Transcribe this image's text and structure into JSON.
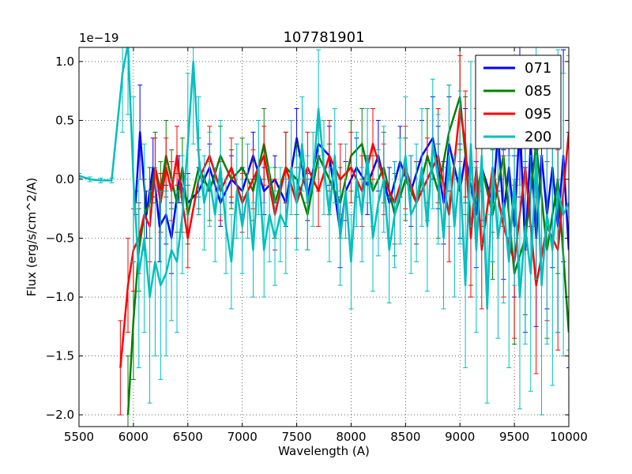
{
  "chart_data": {
    "type": "line",
    "title": "107781901",
    "xlabel": "Wavelength (A)",
    "ylabel": "Flux (erg/s/cm^2/A)",
    "offset_text": "1e−19",
    "xlim": [
      5500,
      10000
    ],
    "ylim": [
      -2.1,
      1.12
    ],
    "xticks": [
      5500,
      6000,
      6500,
      7000,
      7500,
      8000,
      8500,
      9000,
      9500,
      10000
    ],
    "yticks": [
      1.0,
      0.5,
      0.0,
      -0.5,
      -1.0,
      -1.5,
      -2.0
    ],
    "ytick_labels": [
      "1.0",
      "0.5",
      "0.0",
      "−0.5",
      "−1.0",
      "−1.5",
      "−2.0"
    ],
    "grid": true,
    "legend_position": "top-right",
    "series": [
      {
        "name": "071",
        "color": "#0000ff",
        "x": [
          6020,
          6060,
          6120,
          6180,
          6240,
          6300,
          6350,
          6420,
          6500,
          6600,
          6700,
          6800,
          6900,
          7000,
          7100,
          7200,
          7300,
          7400,
          7500,
          7600,
          7700,
          7800,
          7900,
          7950,
          8050,
          8150,
          8250,
          8350,
          8450,
          8550,
          8650,
          8750,
          8800,
          8850,
          8900,
          9000,
          9050,
          9150,
          9200,
          9300,
          9350,
          9400,
          9450,
          9500,
          9550,
          9600,
          9650,
          9700,
          9750,
          9800,
          9850,
          9900,
          9950,
          10000
        ],
        "y": [
          -0.2,
          0.4,
          -0.3,
          0.1,
          -0.4,
          -0.3,
          -0.5,
          0.0,
          -0.2,
          -0.1,
          0.1,
          -0.2,
          0.0,
          -0.1,
          0.2,
          -0.1,
          0.0,
          -0.2,
          0.35,
          -0.15,
          0.3,
          0.2,
          -0.45,
          -0.1,
          0.1,
          -0.05,
          0.2,
          -0.2,
          0.15,
          -0.1,
          0.2,
          0.35,
          0.1,
          -0.2,
          0.3,
          -0.1,
          0.2,
          -0.3,
          0.1,
          -0.2,
          0.4,
          -0.3,
          0.1,
          -0.4,
          0.5,
          -0.6,
          0.3,
          -0.5,
          0.2,
          -0.3,
          0.1,
          -0.4,
          0.2,
          -0.6
        ],
        "err": [
          0.1,
          0.4,
          0.2,
          0.25,
          0.3,
          0.25,
          0.3,
          0.2,
          0.25,
          0.2,
          0.2,
          0.2,
          0.2,
          0.2,
          0.2,
          0.2,
          0.2,
          0.2,
          0.25,
          0.2,
          0.2,
          0.25,
          0.3,
          0.25,
          0.25,
          0.25,
          0.3,
          0.3,
          0.3,
          0.3,
          0.3,
          0.35,
          0.35,
          0.35,
          0.4,
          0.4,
          0.4,
          0.45,
          0.45,
          0.5,
          0.5,
          0.55,
          0.6,
          0.6,
          0.65,
          0.7,
          0.7,
          0.75,
          0.8,
          0.8,
          0.85,
          0.9,
          0.9,
          1.0
        ]
      },
      {
        "name": "085",
        "color": "#008000",
        "x": [
          5950,
          6000,
          6050,
          6100,
          6150,
          6200,
          6250,
          6300,
          6350,
          6400,
          6450,
          6500,
          6600,
          6700,
          6800,
          6900,
          7000,
          7100,
          7200,
          7300,
          7400,
          7500,
          7600,
          7700,
          7800,
          7900,
          8000,
          8100,
          8200,
          8300,
          8400,
          8500,
          8600,
          8700,
          8800,
          8900,
          9000,
          9050,
          9100,
          9200,
          9300,
          9400,
          9500,
          9600,
          9700,
          9800,
          9900,
          10000
        ],
        "y": [
          -2.0,
          -1.2,
          -0.6,
          -0.3,
          -0.2,
          0.1,
          -0.1,
          0.2,
          0.0,
          -0.2,
          0.1,
          -0.3,
          0.1,
          -0.1,
          0.2,
          0.0,
          0.1,
          -0.1,
          0.3,
          -0.2,
          0.1,
          0.0,
          -0.3,
          0.2,
          0.0,
          -0.2,
          0.2,
          0.3,
          -0.1,
          0.1,
          -0.3,
          0.0,
          -0.2,
          0.2,
          -0.1,
          0.4,
          0.7,
          0.2,
          -0.4,
          0.1,
          -0.3,
          0.2,
          -0.8,
          -0.5,
          0.3,
          -0.6,
          0.0,
          -1.3
        ],
        "err": [
          0.5,
          0.5,
          0.35,
          0.3,
          0.3,
          0.3,
          0.25,
          0.3,
          0.25,
          0.25,
          0.25,
          0.25,
          0.25,
          0.25,
          0.25,
          0.25,
          0.25,
          0.25,
          0.3,
          0.3,
          0.3,
          0.3,
          0.3,
          0.3,
          0.3,
          0.3,
          0.3,
          0.3,
          0.3,
          0.3,
          0.35,
          0.35,
          0.35,
          0.4,
          0.4,
          0.4,
          0.45,
          0.5,
          0.5,
          0.5,
          0.55,
          0.6,
          0.6,
          0.65,
          0.7,
          0.75,
          0.8,
          0.85
        ]
      },
      {
        "name": "095",
        "color": "#ff0000",
        "x": [
          5880,
          5950,
          6000,
          6050,
          6100,
          6150,
          6200,
          6250,
          6300,
          6350,
          6400,
          6450,
          6500,
          6600,
          6700,
          6800,
          6900,
          7000,
          7100,
          7200,
          7300,
          7400,
          7500,
          7600,
          7700,
          7800,
          7900,
          8000,
          8100,
          8200,
          8300,
          8400,
          8500,
          8600,
          8700,
          8800,
          8900,
          9000,
          9050,
          9100,
          9150,
          9200,
          9300,
          9400,
          9500,
          9600,
          9700,
          9800,
          9900,
          10000
        ],
        "y": [
          -1.6,
          -0.9,
          -0.6,
          -0.5,
          -0.3,
          -0.4,
          0.1,
          -0.2,
          0.1,
          -0.1,
          0.2,
          -0.2,
          -0.5,
          0.0,
          0.2,
          -0.1,
          0.1,
          -0.2,
          0.0,
          0.2,
          -0.3,
          0.1,
          -0.2,
          0.1,
          -0.1,
          0.2,
          0.0,
          0.1,
          -0.1,
          0.3,
          0.0,
          -0.2,
          0.1,
          -0.2,
          0.0,
          0.2,
          -0.3,
          0.6,
          0.3,
          -0.5,
          0.1,
          -0.6,
          0.1,
          -0.4,
          -0.7,
          0.1,
          -0.9,
          -0.4,
          -0.6,
          0.4
        ],
        "err": [
          0.4,
          0.4,
          0.35,
          0.3,
          0.3,
          0.3,
          0.25,
          0.25,
          0.25,
          0.25,
          0.25,
          0.25,
          0.25,
          0.25,
          0.25,
          0.25,
          0.25,
          0.25,
          0.25,
          0.25,
          0.3,
          0.3,
          0.3,
          0.3,
          0.3,
          0.3,
          0.3,
          0.3,
          0.3,
          0.3,
          0.3,
          0.35,
          0.35,
          0.35,
          0.35,
          0.4,
          0.4,
          0.45,
          0.45,
          0.5,
          0.5,
          0.5,
          0.55,
          0.6,
          0.65,
          0.7,
          0.75,
          0.8,
          0.85,
          0.9
        ]
      },
      {
        "name": "200",
        "color": "#00bfbf",
        "x": [
          5500,
          5600,
          5700,
          5800,
          5900,
          5950,
          6000,
          6050,
          6100,
          6150,
          6200,
          6250,
          6300,
          6350,
          6400,
          6450,
          6500,
          6550,
          6600,
          6650,
          6700,
          6750,
          6800,
          6850,
          6900,
          6950,
          7000,
          7050,
          7100,
          7150,
          7200,
          7250,
          7300,
          7350,
          7400,
          7450,
          7500,
          7550,
          7600,
          7650,
          7700,
          7750,
          7800,
          7850,
          7900,
          7950,
          8000,
          8050,
          8100,
          8150,
          8200,
          8250,
          8300,
          8350,
          8400,
          8450,
          8500,
          8550,
          8600,
          8650,
          8700,
          8750,
          8800,
          8850,
          8900,
          8950,
          9000,
          9050,
          9100,
          9150,
          9200,
          9250,
          9300,
          9350,
          9400,
          9450,
          9500,
          9550,
          9600,
          9650,
          9700,
          9750,
          9800,
          9850,
          9900,
          9950,
          10000
        ],
        "y": [
          0.03,
          0.0,
          -0.01,
          -0.01,
          0.9,
          1.15,
          0.0,
          -0.8,
          -0.5,
          -1.0,
          -0.7,
          -0.9,
          -0.8,
          -0.6,
          -0.7,
          -0.3,
          0.3,
          1.0,
          0.2,
          -0.2,
          0.0,
          -0.3,
          0.1,
          -0.4,
          -0.7,
          -0.1,
          -0.4,
          -0.1,
          -0.6,
          0.1,
          -0.6,
          -0.3,
          -0.5,
          -0.3,
          -0.4,
          0.1,
          -0.2,
          0.3,
          -0.2,
          0.0,
          0.6,
          0.1,
          -0.3,
          0.2,
          -0.5,
          -0.1,
          -0.7,
          0.0,
          -0.3,
          0.2,
          -0.5,
          -0.2,
          0.0,
          -0.6,
          -0.3,
          -0.1,
          0.2,
          -0.3,
          -0.2,
          0.1,
          -0.4,
          0.3,
          0.0,
          -0.5,
          0.2,
          -0.4,
          0.1,
          -0.9,
          0.3,
          -0.6,
          0.2,
          -1.1,
          0.1,
          -0.5,
          -0.2,
          -0.7,
          0.0,
          -1.0,
          -0.4,
          -0.8,
          0.2,
          -0.9,
          -0.3,
          -0.6,
          -0.1,
          -0.3,
          -0.2
        ],
        "err": [
          0.02,
          0.02,
          0.02,
          0.02,
          0.5,
          0.6,
          0.7,
          0.8,
          0.8,
          0.9,
          0.8,
          0.8,
          0.7,
          0.6,
          0.6,
          0.5,
          0.6,
          0.7,
          0.5,
          0.4,
          0.4,
          0.4,
          0.4,
          0.4,
          0.4,
          0.4,
          0.4,
          0.4,
          0.4,
          0.4,
          0.4,
          0.4,
          0.4,
          0.4,
          0.4,
          0.4,
          0.4,
          0.4,
          0.4,
          0.4,
          0.5,
          0.4,
          0.4,
          0.4,
          0.4,
          0.4,
          0.4,
          0.4,
          0.4,
          0.4,
          0.45,
          0.45,
          0.45,
          0.45,
          0.45,
          0.45,
          0.5,
          0.5,
          0.5,
          0.5,
          0.55,
          0.55,
          0.55,
          0.6,
          0.6,
          0.6,
          0.65,
          0.7,
          0.7,
          0.7,
          0.75,
          0.8,
          0.8,
          0.85,
          0.85,
          0.9,
          0.9,
          0.95,
          1.0,
          1.0,
          1.05,
          1.1,
          1.1,
          1.15,
          1.2,
          1.2,
          1.25
        ]
      }
    ]
  }
}
